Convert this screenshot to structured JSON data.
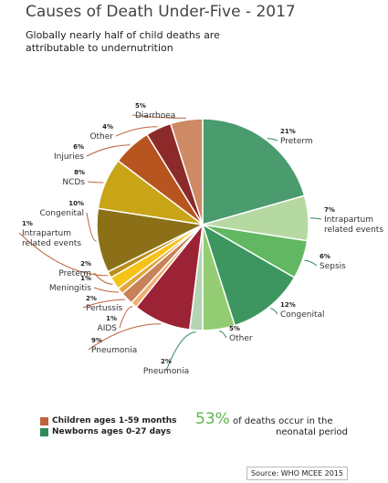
{
  "title": "Causes of Death Under-Five - 2017",
  "subtitle": "Globally nearly half of child deaths are attributable to undernutrition",
  "colors": {
    "children": "#c0623a",
    "newborns": "#2e8b57"
  },
  "chart_data": {
    "type": "pie",
    "title": "Causes of Death Under-Five - 2017",
    "slices": [
      {
        "pct": "21%",
        "label": "Preterm",
        "value": 21,
        "group": "newborns",
        "color": "#4a9b6e"
      },
      {
        "pct": "7%",
        "label": "Intrapartum related events",
        "value": 7,
        "group": "newborns",
        "color": "#b6d9a2"
      },
      {
        "pct": "6%",
        "label": "Sepsis",
        "value": 6,
        "group": "newborns",
        "color": "#62b862"
      },
      {
        "pct": "12%",
        "label": "Congenital",
        "value": 12,
        "group": "newborns",
        "color": "#3d9560"
      },
      {
        "pct": "5%",
        "label": "Other",
        "value": 5,
        "group": "newborns",
        "color": "#93cc73"
      },
      {
        "pct": "2%",
        "label": "Pneumonia",
        "value": 2,
        "group": "newborns",
        "color": "#b4d4b4"
      },
      {
        "pct": "9%",
        "label": "Pneumonia",
        "value": 9,
        "group": "children",
        "color": "#9b2335"
      },
      {
        "pct": "1%",
        "label": "AIDS",
        "value": 1,
        "group": "children",
        "color": "#f0b070"
      },
      {
        "pct": "2%",
        "label": "Pertussis",
        "value": 2,
        "group": "children",
        "color": "#c78259"
      },
      {
        "pct": "1%",
        "label": "Meningitis",
        "value": 1,
        "group": "children",
        "color": "#e3a63a"
      },
      {
        "pct": "2%",
        "label": "Preterm",
        "value": 2,
        "group": "children",
        "color": "#f5c216"
      },
      {
        "pct": "1%",
        "label": "Intrapartum related events",
        "value": 1,
        "group": "children",
        "color": "#ba8c1a"
      },
      {
        "pct": "10%",
        "label": "Congenital",
        "value": 10,
        "group": "children",
        "color": "#8c7017"
      },
      {
        "pct": "8%",
        "label": "NCDs",
        "value": 8,
        "group": "children",
        "color": "#c9a416"
      },
      {
        "pct": "6%",
        "label": "Injuries",
        "value": 6,
        "group": "children",
        "color": "#b8541f"
      },
      {
        "pct": "4%",
        "label": "Other",
        "value": 4,
        "group": "children",
        "color": "#8c2a2a"
      },
      {
        "pct": "5%",
        "label": "Diarrhoea",
        "value": 5,
        "group": "children",
        "color": "#cd8a64"
      }
    ],
    "legend": [
      {
        "label": "Children ages 1-59 months",
        "color": "#c0623a"
      },
      {
        "label": "Newborns ages 0-27 days",
        "color": "#2e8b57"
      }
    ]
  },
  "callout": {
    "pct": "53%",
    "text_line1": " of deaths occur in the",
    "text_line2": "neonatal period"
  },
  "source": "Source: WHO MCEE 2015"
}
